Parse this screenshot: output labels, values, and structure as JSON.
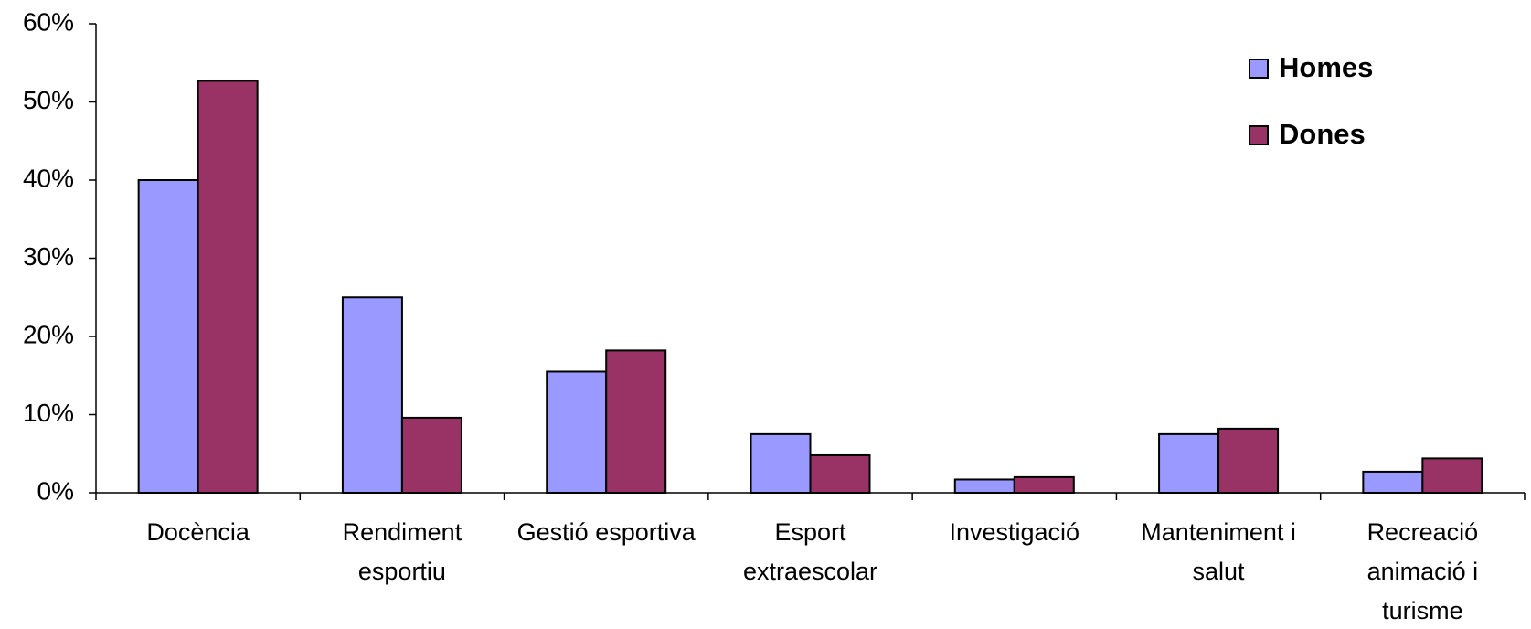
{
  "chart_data": {
    "type": "bar",
    "categories": [
      "Docència",
      "Rendiment esportiu",
      "Gestió esportiva",
      "Esport extraescolar",
      "Investigació",
      "Manteniment i salut",
      "Recreació animació i turisme"
    ],
    "series": [
      {
        "name": "Homes",
        "color": "#9999ff",
        "values": [
          40,
          25,
          15.5,
          7.5,
          1.7,
          7.5,
          2.7
        ]
      },
      {
        "name": "Dones",
        "color": "#993366",
        "values": [
          52.7,
          9.6,
          18.2,
          4.8,
          2.0,
          8.2,
          4.4
        ]
      }
    ],
    "ylim": [
      0,
      60
    ],
    "yticks": [
      {
        "value": 0,
        "label": "0%"
      },
      {
        "value": 10,
        "label": "10%"
      },
      {
        "value": 20,
        "label": "20%"
      },
      {
        "value": 30,
        "label": "30%"
      },
      {
        "value": 40,
        "label": "40%"
      },
      {
        "value": 50,
        "label": "50%"
      },
      {
        "value": 60,
        "label": "60%"
      }
    ],
    "legend": "top-right"
  }
}
